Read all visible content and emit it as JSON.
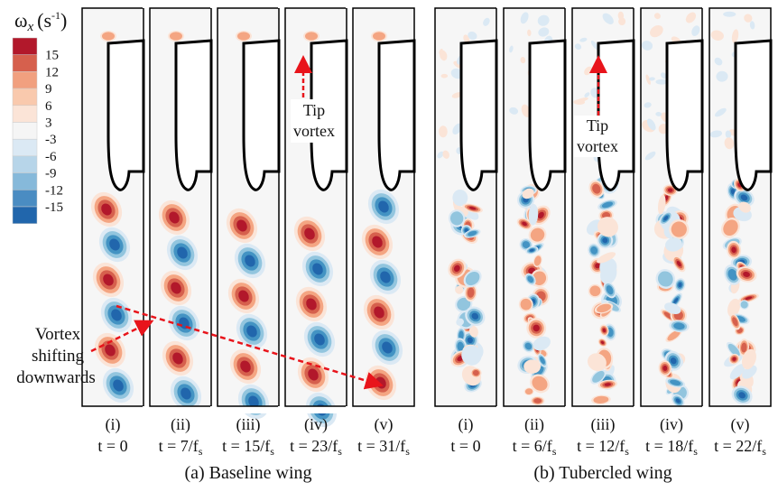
{
  "colorbar": {
    "symbol": "ω",
    "subscript": "x",
    "unit": "(s",
    "unit_exp": "-1",
    "unit_close": ")",
    "ticks": [
      "15",
      "12",
      "9",
      "6",
      "3",
      "-3",
      "-6",
      "-9",
      "-12",
      "-15"
    ],
    "colors": [
      "#b2182b",
      "#d6604d",
      "#f1a07f",
      "#f9c9ad",
      "#fbe4d7",
      "#f5f5f5",
      "#dbe9f4",
      "#b7d5e9",
      "#86b9da",
      "#4a8cc2",
      "#2166ac"
    ]
  },
  "baseline": {
    "caption": "(a) Baseline wing",
    "panels": [
      {
        "index": "(i)",
        "time": "t = 0"
      },
      {
        "index": "(ii)",
        "time": "t = 7/f",
        "sub": "s"
      },
      {
        "index": "(iii)",
        "time": "t = 15/f",
        "sub": "s"
      },
      {
        "index": "(iv)",
        "time": "t = 23/f",
        "sub": "s"
      },
      {
        "index": "(v)",
        "time": "t = 31/f",
        "sub": "s"
      }
    ],
    "tip_label": [
      "Tip",
      "vortex"
    ],
    "shift_label": [
      "Vortex",
      "shifting",
      "downwards"
    ]
  },
  "tubercled": {
    "caption": "(b) Tubercled wing",
    "panels": [
      {
        "index": "(i)",
        "time": "t = 0"
      },
      {
        "index": "(ii)",
        "time": "t = 6/f",
        "sub": "s"
      },
      {
        "index": "(iii)",
        "time": "t = 12/f",
        "sub": "s"
      },
      {
        "index": "(iv)",
        "time": "t = 18/f",
        "sub": "s"
      },
      {
        "index": "(v)",
        "time": "t = 22/f",
        "sub": "s"
      }
    ],
    "tip_label": [
      "Tip",
      "vortex"
    ]
  },
  "colors": {
    "annotation": "#e8141b",
    "red": "#b2182b",
    "blue": "#2166ac",
    "panel_bg": "#f6f6f6"
  }
}
